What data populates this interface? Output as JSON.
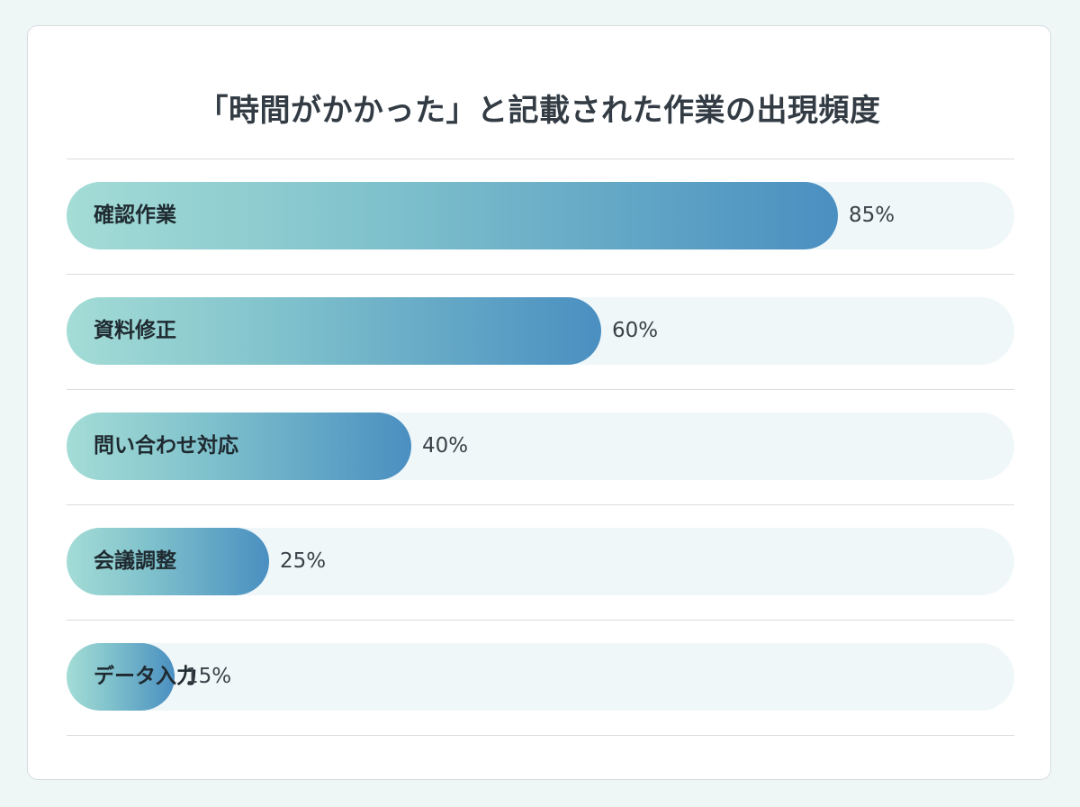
{
  "chart_data": {
    "type": "bar",
    "orientation": "horizontal",
    "title": "「時間がかかった」と記載された作業の出現頻度",
    "categories": [
      "確認作業",
      "資料修正",
      "問い合わせ対応",
      "会議調整",
      "データ入力"
    ],
    "values": [
      85,
      60,
      40,
      25,
      15
    ],
    "value_labels": [
      "85%",
      "60%",
      "40%",
      "25%",
      "15%"
    ],
    "unit": "%",
    "xlim": [
      0,
      100
    ],
    "grid": false,
    "colors": {
      "bar_start": "#a4dcd6",
      "bar_end": "#4a8fc1",
      "track": "#eff7f9"
    }
  }
}
